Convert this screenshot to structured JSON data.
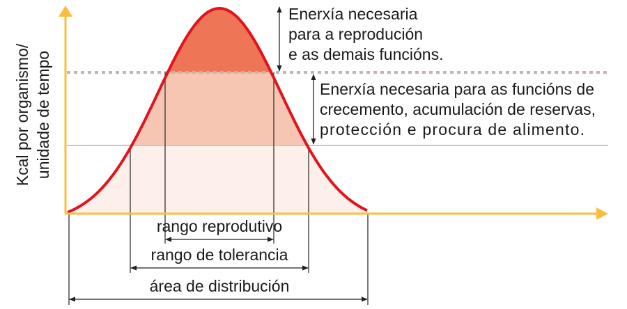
{
  "axis": {
    "y_label_lines": [
      "Kcal por organismo/",
      "unidade de tempo"
    ]
  },
  "annotations": {
    "reproduction_energy_lines": [
      "Enerxía necesaria",
      "para a reprodución",
      "e as demais funcións."
    ],
    "maintenance_energy_lines": [
      "Enerxía necesaria para as funcións de",
      "crecemento, acumulación de reservas,",
      "protección e procura de alimento."
    ]
  },
  "ranges": {
    "reproductive": "rango reprodutivo",
    "tolerance": "rango de tolerancia",
    "distribution": "área de distribución"
  },
  "colors": {
    "curve": "#e0141c",
    "axis": "#fbbd3c",
    "top_fill": "#ee7555",
    "middle_fill": "#f7c6b2",
    "bottom_fill": "#fdefe9",
    "dotted_line": "#c4b6ae",
    "gray_line": "#c8c8c8"
  }
}
